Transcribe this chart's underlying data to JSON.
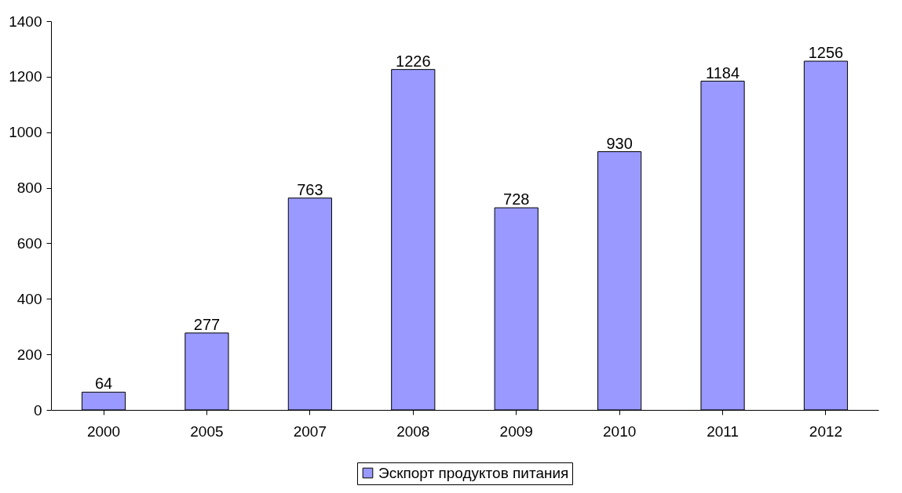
{
  "chart_data": {
    "type": "bar",
    "categories": [
      "2000",
      "2005",
      "2007",
      "2008",
      "2009",
      "2010",
      "2011",
      "2012"
    ],
    "series": [
      {
        "name": "Эскпорт продуктов питания",
        "color": "#9999ff",
        "values": [
          64,
          277,
          763,
          1226,
          728,
          930,
          1184,
          1256
        ]
      }
    ],
    "ylim": [
      0,
      1400
    ],
    "yticks": [
      0,
      200,
      400,
      600,
      800,
      1000,
      1200,
      1400
    ],
    "data_labels": true,
    "legend": "bottom",
    "grid": false
  }
}
